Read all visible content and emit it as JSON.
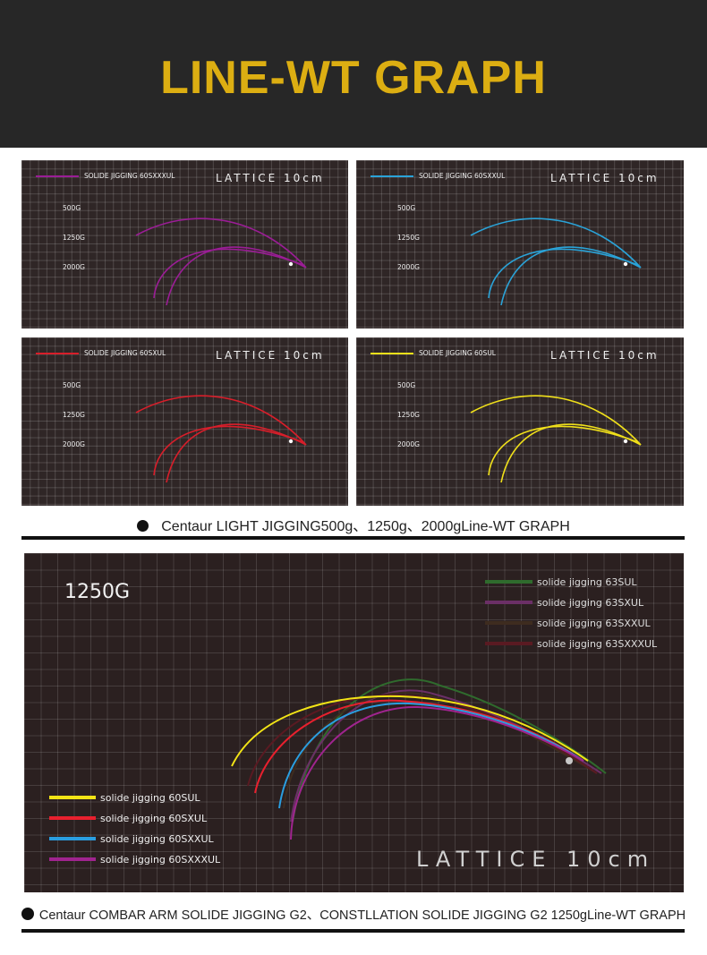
{
  "page_title": "LINE-WT GRAPH",
  "caption_small": "Centaur LIGHT JIGGING500g、1250g、2000gLine-WT GRAPH",
  "caption_big": "Centaur COMBAR ARM SOLIDE JIGGING G2、CONSTLLATION SOLIDE JIGGING G2 1250gLine-WT GRAPH",
  "chart_data": [
    {
      "type": "line",
      "legend": "SOLIDE JIGGING 60SXXXUL",
      "lattice": "LATTICE 10cm",
      "loads": [
        "500G",
        "1250G",
        "2000G"
      ],
      "color": "#9b1d96"
    },
    {
      "type": "line",
      "legend": "SOLIDE JIGGING 60SXXUL",
      "lattice": "LATTICE 10cm",
      "loads": [
        "500G",
        "1250G",
        "2000G"
      ],
      "color": "#2aa3d8"
    },
    {
      "type": "line",
      "legend": "SOLIDE JIGGING 60SXUL",
      "lattice": "LATTICE 10cm",
      "loads": [
        "500G",
        "1250G",
        "2000G"
      ],
      "color": "#d81e2a"
    },
    {
      "type": "line",
      "legend": "SOLIDE JIGGING 60SUL",
      "lattice": "LATTICE 10cm",
      "loads": [
        "500G",
        "1250G",
        "2000G"
      ],
      "color": "#f0e01a"
    },
    {
      "type": "line",
      "title": "1250G",
      "lattice": "LATTICE 10cm",
      "series_top": [
        {
          "name": "solide jigging 63SUL",
          "color": "#2f6b2d"
        },
        {
          "name": "solide jigging 63SXUL",
          "color": "#6b2f66"
        },
        {
          "name": "solide jigging 63SXXUL",
          "color": "#3e2c1f"
        },
        {
          "name": "solide jigging 63SXXXUL",
          "color": "#5a1a22"
        }
      ],
      "series_bottom": [
        {
          "name": "solide jigging 60SUL",
          "color": "#f2e416"
        },
        {
          "name": "solide jigging 60SXUL",
          "color": "#e8202e"
        },
        {
          "name": "solide jigging 60SXXUL",
          "color": "#2a9ee0"
        },
        {
          "name": "solide jigging 60SXXXUL",
          "color": "#a0248f"
        }
      ]
    }
  ]
}
